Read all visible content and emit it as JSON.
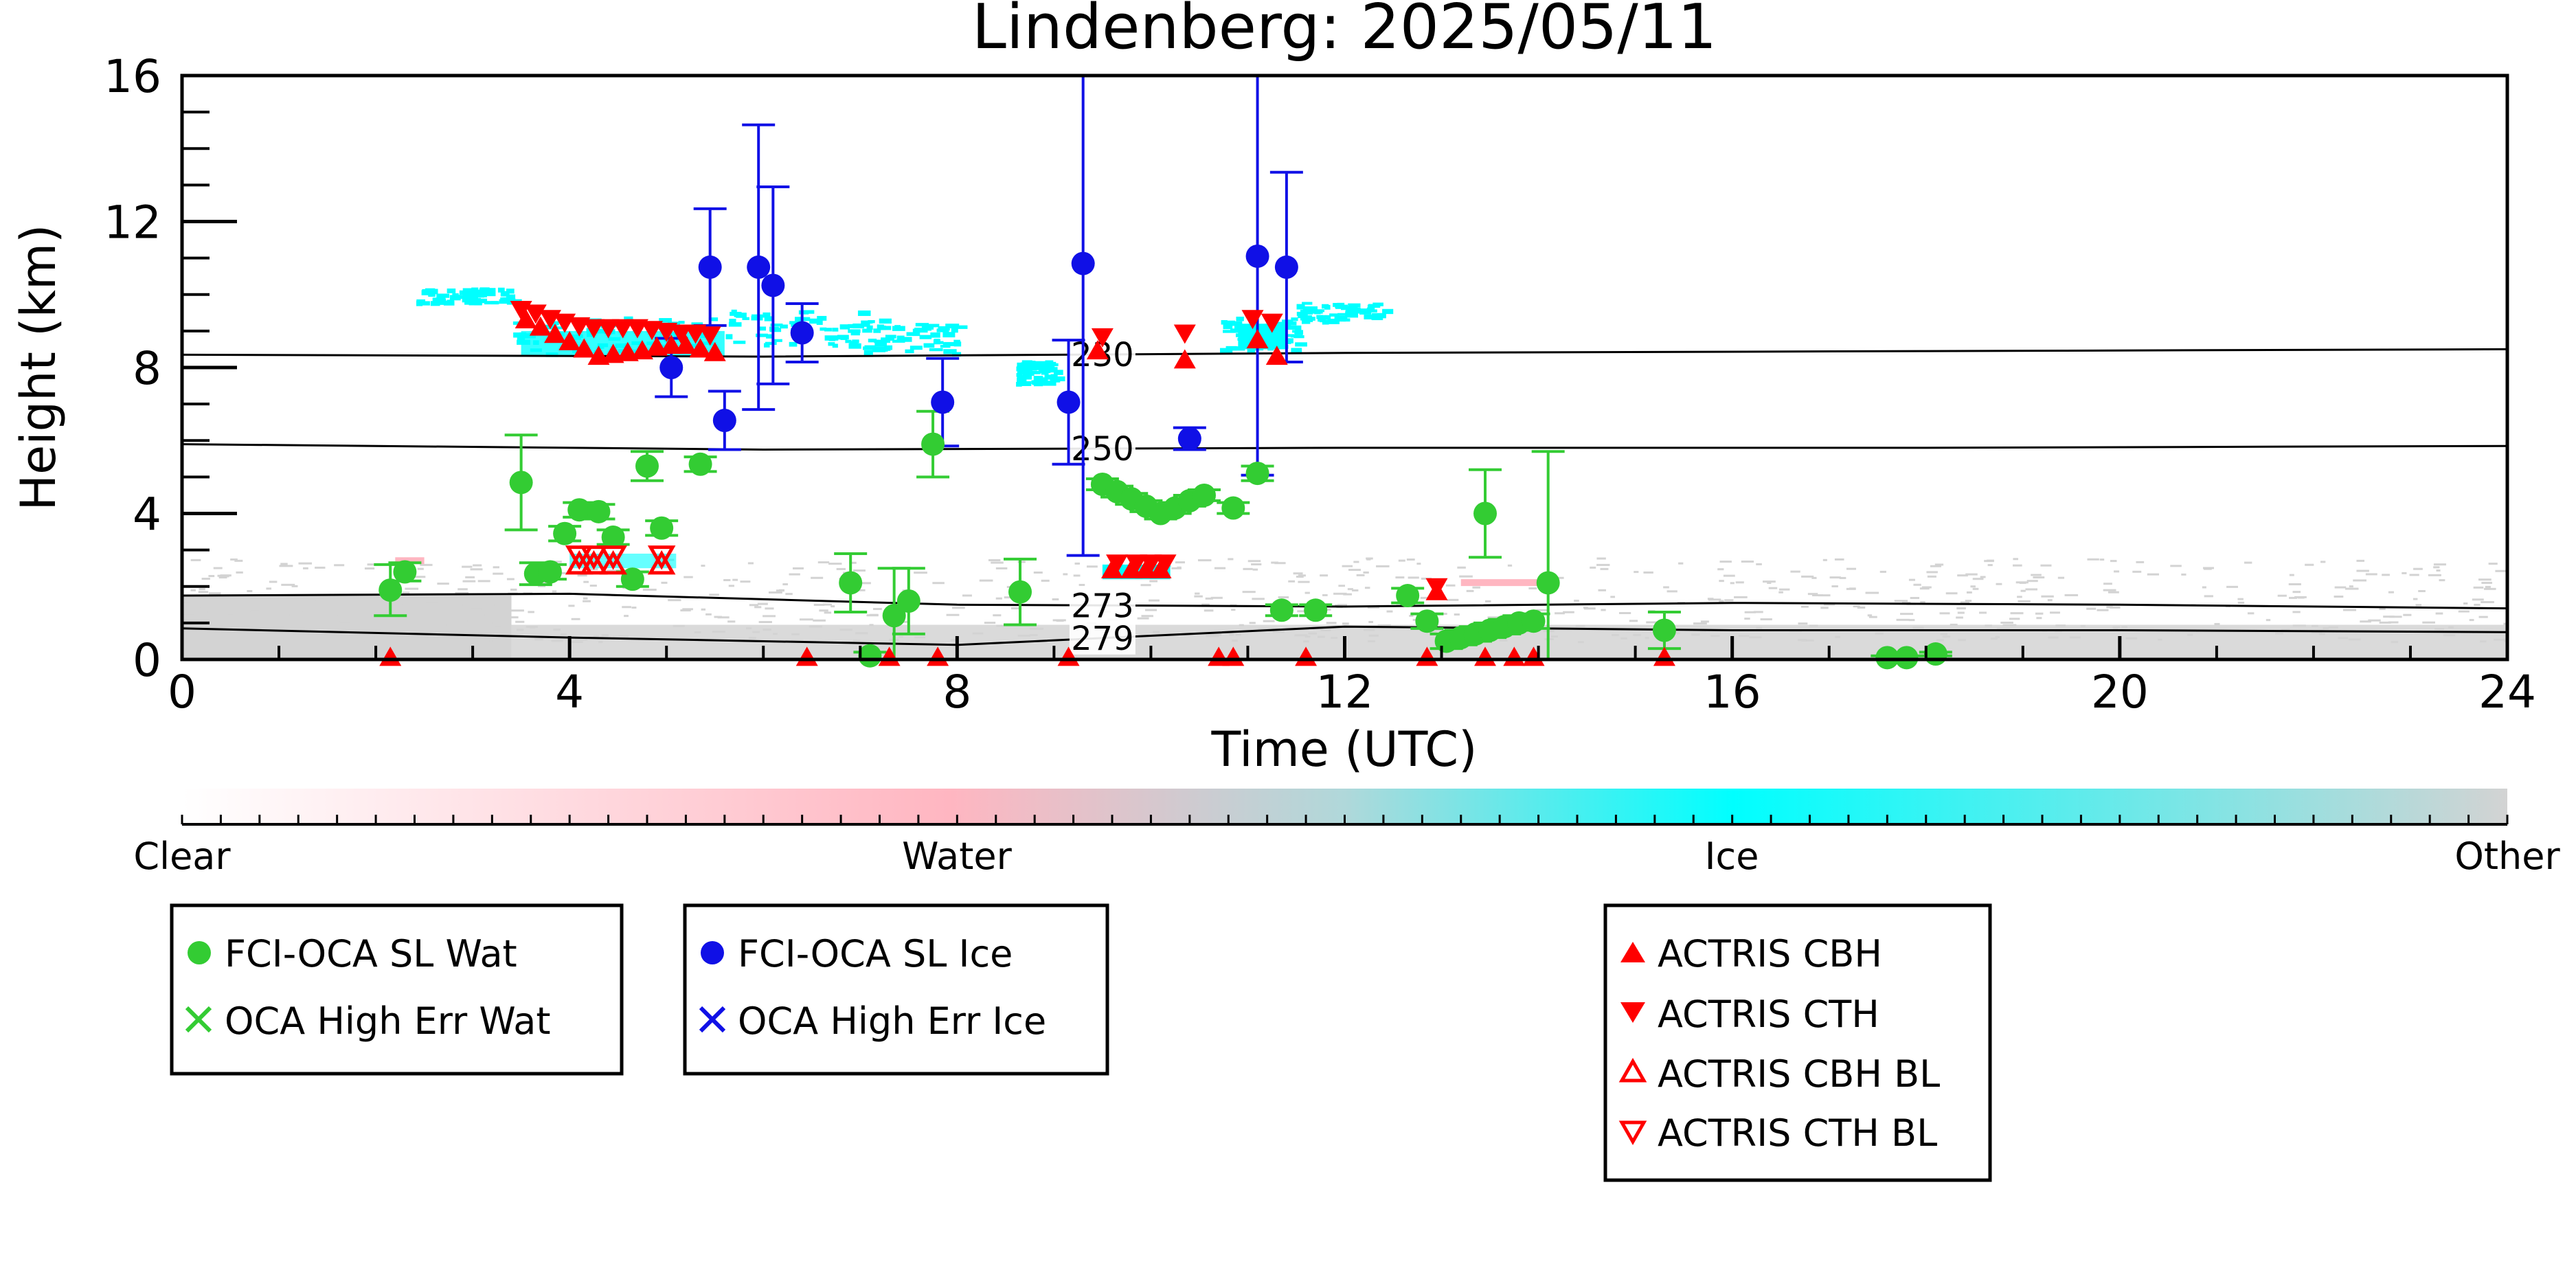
{
  "chart_data": {
    "type": "scatter",
    "title": "Lindenberg: 2025/05/11",
    "xlabel": "Time (UTC)",
    "ylabel": "Height (km)",
    "xlim": [
      0,
      24
    ],
    "ylim": [
      0,
      16
    ],
    "x_ticks": [
      0,
      4,
      8,
      12,
      16,
      20,
      24
    ],
    "y_ticks": [
      0,
      4,
      8,
      12,
      16
    ],
    "x_tick_labels": [
      "0",
      "4",
      "8",
      "12",
      "16",
      "20",
      "24"
    ],
    "y_tick_labels": [
      "0",
      "4",
      "8",
      "12",
      "16"
    ],
    "grid": false,
    "colors": {
      "water_marker": "#33cc33",
      "ice_marker": "#1010e6",
      "actris_marker": "#ff0000",
      "classification_clear": "#ffffff",
      "classification_water": "#ffb6c1",
      "classification_ice": "#00ffff",
      "classification_other": "#d3d3d3"
    },
    "colorbar": {
      "labels": [
        "Clear",
        "Water",
        "Ice",
        "Other"
      ]
    },
    "isotherms": [
      {
        "label": "230",
        "label_x": 9.5,
        "points": [
          [
            0,
            8.35
          ],
          [
            6,
            8.3
          ],
          [
            12,
            8.4
          ],
          [
            18,
            8.45
          ],
          [
            24,
            8.5
          ]
        ]
      },
      {
        "label": "250",
        "label_x": 9.5,
        "points": [
          [
            0,
            5.9
          ],
          [
            6,
            5.75
          ],
          [
            12,
            5.8
          ],
          [
            18,
            5.8
          ],
          [
            24,
            5.85
          ]
        ]
      },
      {
        "label": "273",
        "label_x": 9.5,
        "points": [
          [
            0,
            1.75
          ],
          [
            4,
            1.8
          ],
          [
            8,
            1.5
          ],
          [
            12,
            1.45
          ],
          [
            16,
            1.55
          ],
          [
            20,
            1.5
          ],
          [
            24,
            1.4
          ]
        ]
      },
      {
        "label": "279",
        "label_x": 9.5,
        "points": [
          [
            0,
            0.85
          ],
          [
            4,
            0.6
          ],
          [
            8,
            0.4
          ],
          [
            12,
            0.9
          ],
          [
            16,
            0.8
          ],
          [
            20,
            0.8
          ],
          [
            24,
            0.75
          ]
        ]
      }
    ],
    "series": [
      {
        "name": "FCI-OCA SL Wat",
        "marker": "circle",
        "points": [
          {
            "x": 2.15,
            "y": 1.9,
            "err": 0.7
          },
          {
            "x": 2.3,
            "y": 2.4,
            "err": 0.25
          },
          {
            "x": 3.5,
            "y": 4.85,
            "err": 1.3
          },
          {
            "x": 3.65,
            "y": 2.35,
            "err": 0.3
          },
          {
            "x": 3.8,
            "y": 2.4,
            "err": 0.2
          },
          {
            "x": 3.95,
            "y": 3.45,
            "err": 0.2
          },
          {
            "x": 4.1,
            "y": 4.1,
            "err": 0.2
          },
          {
            "x": 4.3,
            "y": 4.05,
            "err": 0.2
          },
          {
            "x": 4.45,
            "y": 3.35,
            "err": 0.2
          },
          {
            "x": 4.65,
            "y": 2.2,
            "err": 0.2
          },
          {
            "x": 4.8,
            "y": 5.3,
            "err": 0.4
          },
          {
            "x": 4.95,
            "y": 3.6,
            "err": 0.2
          },
          {
            "x": 5.35,
            "y": 5.35,
            "err": 0.2
          },
          {
            "x": 6.9,
            "y": 2.1,
            "err": 0.8
          },
          {
            "x": 7.1,
            "y": 0.1,
            "err": 0.1
          },
          {
            "x": 7.35,
            "y": 1.2,
            "err": 1.3
          },
          {
            "x": 7.5,
            "y": 1.6,
            "err": 0.9
          },
          {
            "x": 7.75,
            "y": 5.9,
            "err": 0.9
          },
          {
            "x": 8.65,
            "y": 1.85,
            "err": 0.9
          },
          {
            "x": 9.5,
            "y": 4.8,
            "err": 0.15
          },
          {
            "x": 9.65,
            "y": 4.6,
            "err": 0.15
          },
          {
            "x": 9.8,
            "y": 4.4,
            "err": 0.15
          },
          {
            "x": 9.95,
            "y": 4.2,
            "err": 0.15
          },
          {
            "x": 10.1,
            "y": 4.0,
            "err": 0.15
          },
          {
            "x": 10.25,
            "y": 4.15,
            "err": 0.15
          },
          {
            "x": 10.4,
            "y": 4.35,
            "err": 0.15
          },
          {
            "x": 10.55,
            "y": 4.5,
            "err": 0.15
          },
          {
            "x": 10.85,
            "y": 4.15,
            "err": 0.15
          },
          {
            "x": 11.1,
            "y": 5.1,
            "err": 0.2
          },
          {
            "x": 11.35,
            "y": 1.35,
            "err": 0.15
          },
          {
            "x": 11.7,
            "y": 1.35,
            "err": 0.15
          },
          {
            "x": 12.65,
            "y": 1.75,
            "err": 0.2
          },
          {
            "x": 12.85,
            "y": 1.05,
            "err": 0.2
          },
          {
            "x": 13.05,
            "y": 0.5,
            "err": 0.2
          },
          {
            "x": 13.2,
            "y": 0.6,
            "err": 0.2
          },
          {
            "x": 13.35,
            "y": 0.7,
            "err": 0.2
          },
          {
            "x": 13.5,
            "y": 0.8,
            "err": 0.2
          },
          {
            "x": 13.65,
            "y": 0.9,
            "err": 0.2
          },
          {
            "x": 13.8,
            "y": 1.0,
            "err": 0.2
          },
          {
            "x": 13.95,
            "y": 1.05,
            "err": 0.2
          },
          {
            "x": 13.45,
            "y": 4.0,
            "err": 1.2
          },
          {
            "x": 14.1,
            "y": 2.1,
            "err": 3.6
          },
          {
            "x": 15.3,
            "y": 0.8,
            "err": 0.5
          },
          {
            "x": 17.6,
            "y": 0.05,
            "err": 0.05
          },
          {
            "x": 17.8,
            "y": 0.05,
            "err": 0.05
          },
          {
            "x": 18.1,
            "y": 0.15,
            "err": 0.05
          }
        ]
      },
      {
        "name": "FCI-OCA SL Ice",
        "marker": "circle",
        "points": [
          {
            "x": 5.05,
            "y": 8.0,
            "err": 0.8
          },
          {
            "x": 5.45,
            "y": 10.75,
            "err": 1.6
          },
          {
            "x": 5.6,
            "y": 6.55,
            "err": 0.8
          },
          {
            "x": 5.95,
            "y": 10.75,
            "err": 3.9
          },
          {
            "x": 6.1,
            "y": 10.25,
            "err": 2.7
          },
          {
            "x": 6.4,
            "y": 8.95,
            "err": 0.8
          },
          {
            "x": 7.85,
            "y": 7.05,
            "err": 1.2
          },
          {
            "x": 9.15,
            "y": 7.05,
            "err": 1.7
          },
          {
            "x": 9.3,
            "y": 10.85,
            "err": 8.0
          },
          {
            "x": 10.4,
            "y": 6.05,
            "err": 0.3
          },
          {
            "x": 11.1,
            "y": 11.05,
            "err": 6.0
          },
          {
            "x": 11.4,
            "y": 10.75,
            "err": 2.6
          }
        ]
      },
      {
        "name": "OCA High Err Wat",
        "marker": "x",
        "points": []
      },
      {
        "name": "OCA High Err Ice",
        "marker": "x",
        "points": []
      },
      {
        "name": "ACTRIS CBH",
        "marker": "triangle-up",
        "points": [
          {
            "x": 3.55,
            "y": 9.3
          },
          {
            "x": 3.7,
            "y": 9.1
          },
          {
            "x": 3.85,
            "y": 8.9
          },
          {
            "x": 4.0,
            "y": 8.7
          },
          {
            "x": 4.15,
            "y": 8.5
          },
          {
            "x": 4.3,
            "y": 8.3
          },
          {
            "x": 4.45,
            "y": 8.35
          },
          {
            "x": 4.6,
            "y": 8.4
          },
          {
            "x": 4.75,
            "y": 8.45
          },
          {
            "x": 4.9,
            "y": 8.55
          },
          {
            "x": 5.05,
            "y": 8.6
          },
          {
            "x": 5.2,
            "y": 8.6
          },
          {
            "x": 5.35,
            "y": 8.5
          },
          {
            "x": 5.5,
            "y": 8.4
          },
          {
            "x": 9.45,
            "y": 8.45
          },
          {
            "x": 9.6,
            "y": 2.45
          },
          {
            "x": 9.8,
            "y": 2.45
          },
          {
            "x": 9.95,
            "y": 2.45
          },
          {
            "x": 10.1,
            "y": 2.45
          },
          {
            "x": 10.35,
            "y": 8.2
          },
          {
            "x": 11.1,
            "y": 8.75
          },
          {
            "x": 11.3,
            "y": 8.3
          },
          {
            "x": 12.95,
            "y": 1.85
          },
          {
            "x": 2.15,
            "y": 0.05
          },
          {
            "x": 6.45,
            "y": 0.05
          },
          {
            "x": 7.3,
            "y": 0.05
          },
          {
            "x": 7.8,
            "y": 0.05
          },
          {
            "x": 9.15,
            "y": 0.05
          },
          {
            "x": 10.7,
            "y": 0.05
          },
          {
            "x": 10.85,
            "y": 0.05
          },
          {
            "x": 11.6,
            "y": 0.05
          },
          {
            "x": 12.85,
            "y": 0.05
          },
          {
            "x": 13.45,
            "y": 0.05
          },
          {
            "x": 13.75,
            "y": 0.05
          },
          {
            "x": 13.95,
            "y": 0.05
          },
          {
            "x": 15.3,
            "y": 0.05
          }
        ]
      },
      {
        "name": "ACTRIS CTH",
        "marker": "triangle-down",
        "points": [
          {
            "x": 3.5,
            "y": 9.6
          },
          {
            "x": 3.65,
            "y": 9.5
          },
          {
            "x": 3.8,
            "y": 9.35
          },
          {
            "x": 3.95,
            "y": 9.25
          },
          {
            "x": 4.1,
            "y": 9.15
          },
          {
            "x": 4.25,
            "y": 9.1
          },
          {
            "x": 4.4,
            "y": 9.1
          },
          {
            "x": 4.55,
            "y": 9.1
          },
          {
            "x": 4.7,
            "y": 9.1
          },
          {
            "x": 4.85,
            "y": 9.05
          },
          {
            "x": 5.0,
            "y": 9.0
          },
          {
            "x": 5.15,
            "y": 8.95
          },
          {
            "x": 5.3,
            "y": 8.95
          },
          {
            "x": 5.45,
            "y": 8.9
          },
          {
            "x": 9.5,
            "y": 8.85
          },
          {
            "x": 9.65,
            "y": 2.65
          },
          {
            "x": 9.85,
            "y": 2.65
          },
          {
            "x": 10.0,
            "y": 2.65
          },
          {
            "x": 10.15,
            "y": 2.65
          },
          {
            "x": 10.35,
            "y": 8.95
          },
          {
            "x": 11.05,
            "y": 9.35
          },
          {
            "x": 11.25,
            "y": 9.25
          },
          {
            "x": 12.95,
            "y": 2.0
          }
        ]
      },
      {
        "name": "ACTRIS CBH BL",
        "marker": "triangle-up-open",
        "points": [
          {
            "x": 4.1,
            "y": 2.6
          },
          {
            "x": 4.25,
            "y": 2.6
          },
          {
            "x": 4.45,
            "y": 2.6
          },
          {
            "x": 4.95,
            "y": 2.6
          }
        ]
      },
      {
        "name": "ACTRIS CTH BL",
        "marker": "triangle-down-open",
        "points": [
          {
            "x": 4.1,
            "y": 2.85
          },
          {
            "x": 4.25,
            "y": 2.85
          },
          {
            "x": 4.45,
            "y": 2.85
          },
          {
            "x": 4.95,
            "y": 2.85
          }
        ]
      }
    ],
    "legends": [
      {
        "entries": [
          "FCI-OCA SL Wat",
          "OCA High Err Wat"
        ]
      },
      {
        "entries": [
          "FCI-OCA SL Ice",
          "OCA High Err Ice"
        ]
      },
      {
        "entries": [
          "ACTRIS CBH",
          "ACTRIS CTH",
          "ACTRIS CBH BL",
          "ACTRIS CTH BL"
        ]
      }
    ]
  }
}
